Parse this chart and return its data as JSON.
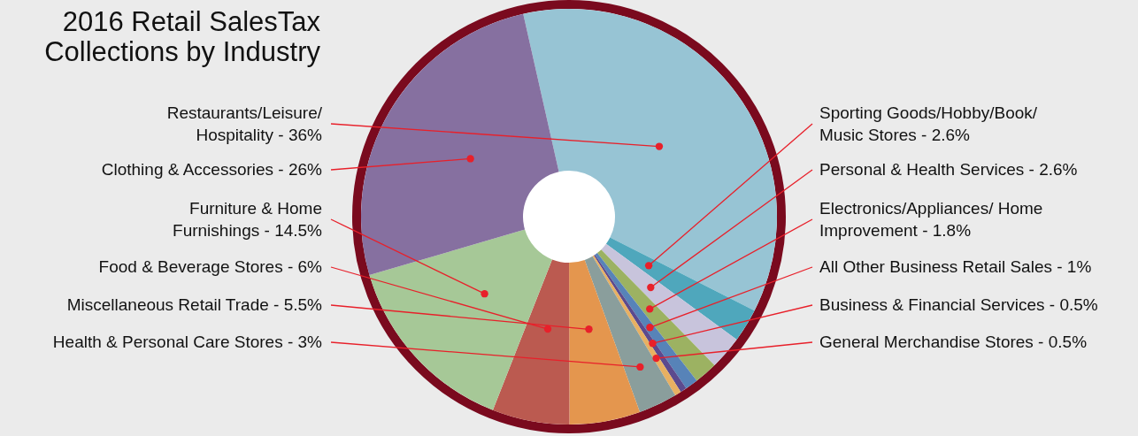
{
  "chart_data": {
    "type": "donut",
    "title": "2016 Retail SalesTax\nCollections by Industry",
    "categories": [
      "Restaurants/Leisure/\nHospitality",
      "Sporting Goods/Hobby/Book/\nMusic Stores",
      "Personal & Health Services",
      "Electronics/Appliances/ Home\nImprovement",
      "All Other Business Retail Sales",
      "Business & Financial Services",
      "General Merchandise Stores",
      "Health & Personal Care Stores",
      "Miscellaneous Retail Trade",
      "Food & Beverage Stores",
      "Furniture & Home\nFurnishings",
      "Clothing & Accessories"
    ],
    "values": [
      36,
      2.6,
      2.6,
      1.8,
      1,
      0.5,
      0.5,
      3,
      5.5,
      6,
      14.5,
      26
    ],
    "value_labels": [
      "36%",
      "2.6%",
      "2.6%",
      "1.8%",
      "1%",
      "0.5%",
      "0.5%",
      "3%",
      "5.5%",
      "6%",
      "14.5%",
      "26%"
    ],
    "colors": [
      "#97c4d4",
      "#4fa7bc",
      "#c8c4dc",
      "#9cb262",
      "#5783b8",
      "#5c4a8e",
      "#e8b062",
      "#8a9e9c",
      "#e4964e",
      "#bb5a50",
      "#a6c897",
      "#8670a0"
    ]
  }
}
